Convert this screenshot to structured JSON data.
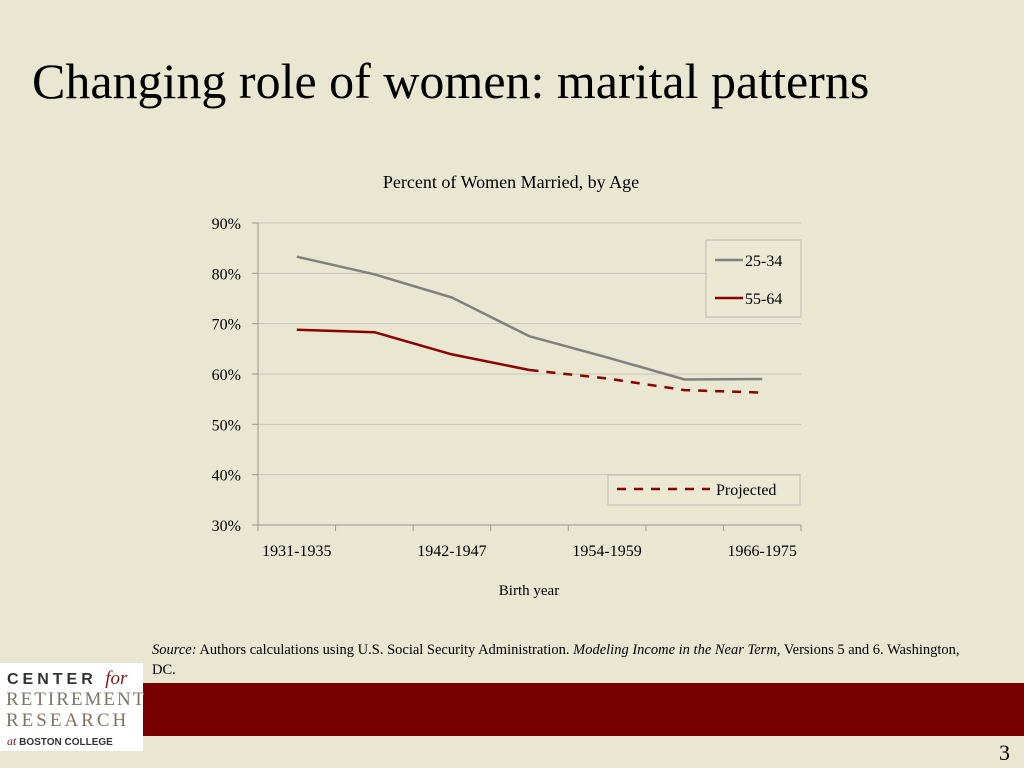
{
  "slide": {
    "title": "Changing role of women: marital patterns",
    "page_number": "3"
  },
  "source": {
    "label": "Source:",
    "text": " Authors calculations using U.S. Social Security Administration. ",
    "publication": "Modeling Income in the Near Term",
    "text2": ", Versions 5 and 6. Washington, DC."
  },
  "logo": {
    "line1": "CENTER",
    "line1_for": "for",
    "line2": "RETIREMENT",
    "line3": "RESEARCH",
    "line4_at": "at",
    "line4": "BOSTON COLLEGE"
  },
  "chart_data": {
    "type": "line",
    "title": "Percent of Women Married, by Age",
    "xlabel": "Birth year",
    "ylabel": "",
    "x_tick_labels": [
      "1931-1935",
      "1942-1947",
      "1954-1959",
      "1966-1975"
    ],
    "x_categories_count": 7,
    "ylim": [
      30,
      90
    ],
    "y_ticks": [
      30,
      40,
      50,
      60,
      70,
      80,
      90
    ],
    "y_tick_format": "%",
    "grid": true,
    "series": [
      {
        "name": "25-34",
        "color": "#808080",
        "style": "solid",
        "values": [
          83.3,
          79.8,
          75.2,
          67.5,
          63.3,
          58.9,
          59.0
        ]
      },
      {
        "name": "55-64",
        "color": "#8b0000",
        "style": "solid",
        "values": [
          68.8,
          68.3,
          63.9,
          60.8,
          null,
          null,
          null
        ]
      },
      {
        "name": "Projected",
        "color": "#8b0000",
        "style": "dashed",
        "values": [
          null,
          null,
          null,
          60.8,
          59.1,
          56.8,
          56.3
        ]
      }
    ],
    "legend_position": "top-right"
  }
}
